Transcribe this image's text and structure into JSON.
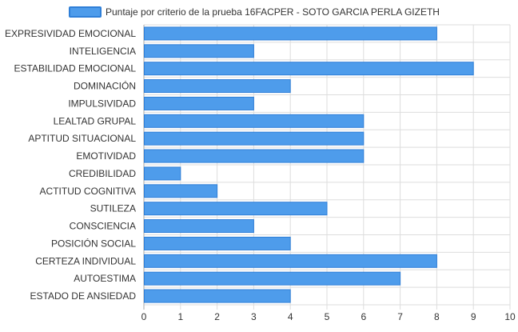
{
  "chart_data": {
    "type": "bar",
    "orientation": "horizontal",
    "legend": {
      "label": "Puntaje por criterio de la prueba 16FACPER - SOTO GARCIA PERLA GIZETH",
      "position": "top"
    },
    "categories": [
      "EXPRESIVIDAD EMOCIONAL",
      "INTELIGENCIA",
      "ESTABILIDAD EMOCIONAL",
      "DOMINACIÓN",
      "IMPULSIVIDAD",
      "LEALTAD GRUPAL",
      "APTITUD SITUACIONAL",
      "EMOTIVIDAD",
      "CREDIBILIDAD",
      "ACTITUD COGNITIVA",
      "SUTILEZA",
      "CONSCIENCIA",
      "POSICIÓN SOCIAL",
      "CERTEZA INDIVIDUAL",
      "AUTOESTIMA",
      "ESTADO DE ANSIEDAD"
    ],
    "series": [
      {
        "name": "Puntaje por criterio de la prueba 16FACPER - SOTO GARCIA PERLA GIZETH",
        "values": [
          8,
          3,
          9,
          4,
          3,
          6,
          6,
          6,
          1,
          2,
          5,
          3,
          4,
          8,
          7,
          4
        ]
      }
    ],
    "xlim": [
      0,
      10
    ],
    "xticks": [
      "0",
      "1",
      "2",
      "3",
      "4",
      "5",
      "6",
      "7",
      "8",
      "9",
      "10"
    ],
    "grid": true,
    "colors": {
      "bar_fill": "#4e9ceb",
      "bar_stroke": "#2f7fd8",
      "grid": "#dddddd",
      "axis": "#aaaaaa",
      "text": "#333333"
    }
  }
}
